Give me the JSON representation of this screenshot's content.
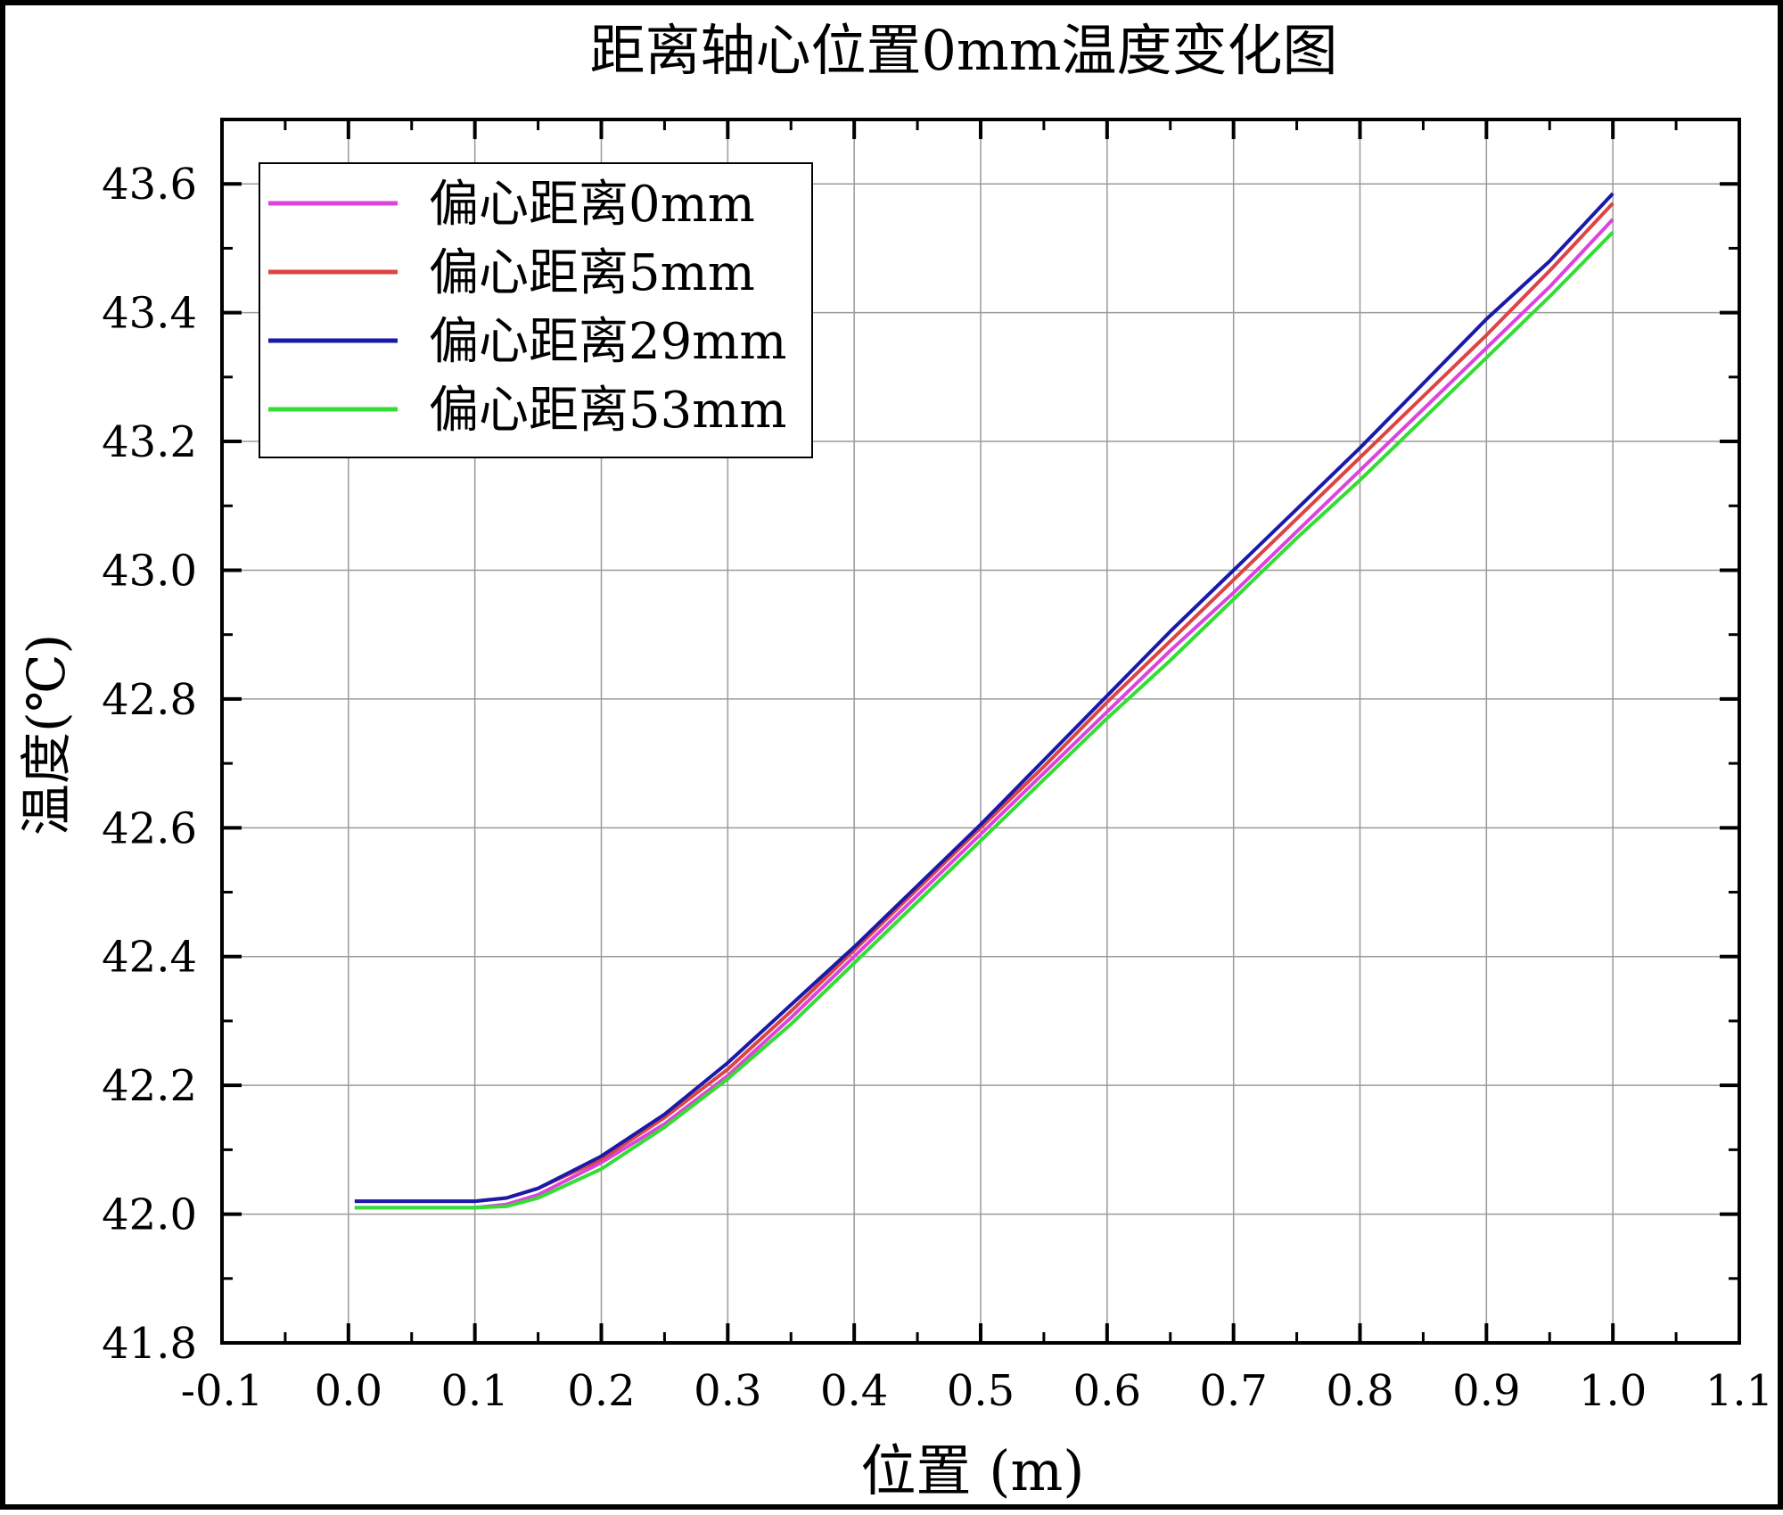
{
  "chart_data": {
    "type": "line",
    "title": "距离轴心位置0mm温度变化图",
    "xlabel": "位置 (m)",
    "ylabel": "温度(℃)",
    "xlim": [
      -0.1,
      1.1
    ],
    "ylim": [
      41.8,
      43.7
    ],
    "x_ticks": [
      -0.1,
      0.0,
      0.1,
      0.2,
      0.3,
      0.4,
      0.5,
      0.6,
      0.7,
      0.8,
      0.9,
      1.0,
      1.1
    ],
    "x_tick_labels": [
      "-0.1",
      "0.0",
      "0.1",
      "0.2",
      "0.3",
      "0.4",
      "0.5",
      "0.6",
      "0.7",
      "0.8",
      "0.9",
      "1.0",
      "1.1"
    ],
    "y_ticks": [
      41.8,
      42.0,
      42.2,
      42.4,
      42.6,
      42.8,
      43.0,
      43.2,
      43.4,
      43.6
    ],
    "y_tick_labels": [
      "41.8",
      "42.0",
      "42.2",
      "42.4",
      "42.6",
      "42.8",
      "43.0",
      "43.2",
      "43.4",
      "43.6"
    ],
    "grid": true,
    "legend_position": "top-left",
    "x": [
      0.005,
      0.05,
      0.1,
      0.125,
      0.15,
      0.2,
      0.25,
      0.3,
      0.35,
      0.4,
      0.45,
      0.5,
      0.55,
      0.6,
      0.65,
      0.7,
      0.75,
      0.8,
      0.85,
      0.9,
      0.95,
      1.0
    ],
    "series": [
      {
        "name": "偏心距离0mm",
        "color": "#dd44dd",
        "values": [
          42.01,
          42.01,
          42.01,
          42.015,
          42.03,
          42.08,
          42.14,
          42.215,
          42.305,
          42.4,
          42.495,
          42.59,
          42.685,
          42.78,
          42.875,
          42.965,
          43.06,
          43.155,
          43.25,
          43.345,
          43.44,
          43.545
        ]
      },
      {
        "name": "偏心距离5mm",
        "color": "#dd4444",
        "values": [
          42.02,
          42.02,
          42.02,
          42.025,
          42.04,
          42.085,
          42.15,
          42.225,
          42.315,
          42.41,
          42.505,
          42.6,
          42.695,
          42.795,
          42.89,
          42.985,
          43.08,
          43.175,
          43.27,
          43.365,
          43.465,
          43.57
        ]
      },
      {
        "name": "偏心距离29mm",
        "color": "#1a1aaa",
        "values": [
          42.02,
          42.02,
          42.02,
          42.025,
          42.04,
          42.09,
          42.155,
          42.235,
          42.325,
          42.415,
          42.51,
          42.605,
          42.705,
          42.805,
          42.905,
          43.0,
          43.095,
          43.19,
          43.29,
          43.39,
          43.48,
          43.585
        ]
      },
      {
        "name": "偏心距离53mm",
        "color": "#33dd33",
        "values": [
          42.01,
          42.01,
          42.01,
          42.012,
          42.025,
          42.07,
          42.135,
          42.21,
          42.295,
          42.39,
          42.485,
          42.58,
          42.675,
          42.77,
          42.86,
          42.955,
          43.05,
          43.14,
          43.235,
          43.33,
          43.425,
          43.525
        ]
      }
    ]
  }
}
